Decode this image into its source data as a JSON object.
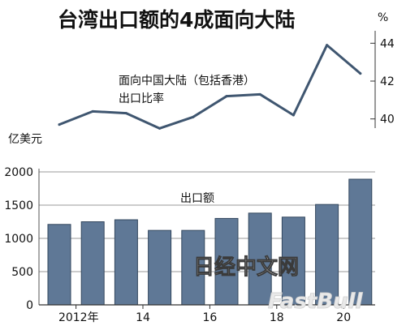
{
  "title": "台湾出口额的4成面向大陆",
  "watermark": "日经中文网",
  "watermark2": "FastBull",
  "chart_data": [
    {
      "type": "line",
      "series": [
        {
          "name": "面向中国大陆（包括香港）",
          "name_line2": "出口比率",
          "values": [
            39.7,
            40.4,
            40.3,
            39.5,
            40.1,
            41.2,
            41.3,
            40.2,
            43.9,
            42.4
          ]
        }
      ],
      "x": [
        2011,
        2012,
        2013,
        2014,
        2015,
        2016,
        2017,
        2018,
        2019,
        2020
      ],
      "ylabel": "%",
      "yticks": [
        40,
        42,
        44
      ],
      "ylim": [
        39,
        44.4
      ]
    },
    {
      "type": "bar",
      "series": [
        {
          "name": "出口额",
          "values": [
            1210,
            1250,
            1280,
            1120,
            1120,
            1300,
            1380,
            1320,
            1510,
            1890
          ]
        }
      ],
      "x": [
        2011,
        2012,
        2013,
        2014,
        2015,
        2016,
        2017,
        2018,
        2019,
        2020
      ],
      "xticks": [
        "2012年",
        "14",
        "16",
        "18",
        "20"
      ],
      "ylabel": "亿美元",
      "yticks": [
        0,
        500,
        1000,
        1500,
        2000
      ],
      "ylim": [
        0,
        2000
      ],
      "colors": {
        "bar": "#5f7896",
        "edge": "#33475e",
        "grid": "#9a9a9a"
      }
    }
  ]
}
